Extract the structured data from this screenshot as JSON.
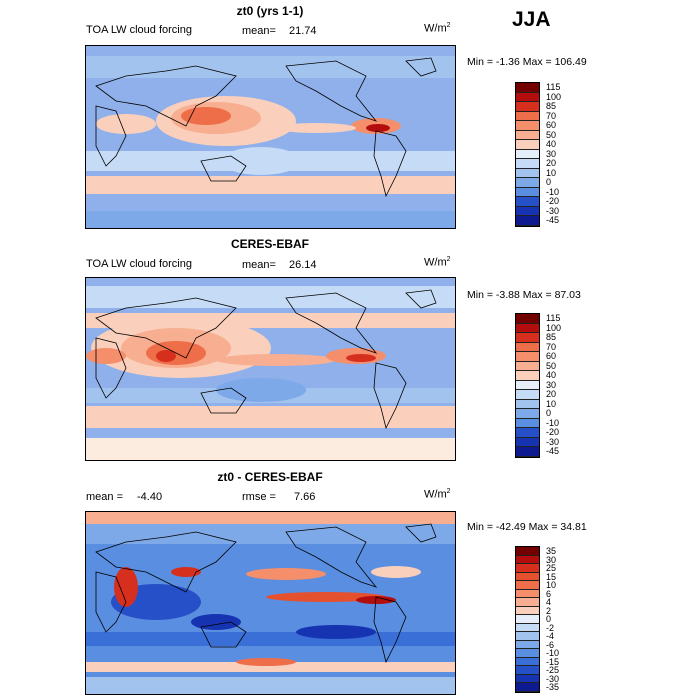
{
  "season": "JJA",
  "colors": {
    "scale": [
      "#730000",
      "#b30d0d",
      "#d62f1e",
      "#e5502f",
      "#ef6e4a",
      "#f58e6a",
      "#f8ae91",
      "#fad0bd",
      "#fcebdf",
      "#e6eefa",
      "#c6dbf5",
      "#a3c3ef",
      "#7ea9e8",
      "#5a8ee0",
      "#3a6fd8",
      "#2650c8",
      "#1634b2",
      "#0d1a90"
    ],
    "land": "#9fbfee",
    "ocean": "#8fb0ea"
  },
  "panels": [
    {
      "title": "zt0 (yrs 1-1)",
      "variable": "TOA LW cloud forcing",
      "stat_label": "mean=",
      "stat_value": "21.74",
      "units": "W/m",
      "units_exp": "2",
      "min_label": "Min =",
      "min_value": "-1.36",
      "max_label": "Max =",
      "max_value": "106.49",
      "levels": [
        "115",
        "100",
        "85",
        "70",
        "60",
        "50",
        "40",
        "30",
        "20",
        "10",
        "0",
        "-10",
        "-20",
        "-30",
        "-45"
      ]
    },
    {
      "title": "CERES-EBAF",
      "variable": "TOA LW cloud forcing",
      "stat_label": "mean=",
      "stat_value": "26.14",
      "units": "W/m",
      "units_exp": "2",
      "min_label": "Min =",
      "min_value": "-3.88",
      "max_label": "Max =",
      "max_value": "87.03",
      "levels": [
        "115",
        "100",
        "85",
        "70",
        "60",
        "50",
        "40",
        "30",
        "20",
        "10",
        "0",
        "-10",
        "-20",
        "-30",
        "-45"
      ]
    },
    {
      "title": "zt0 - CERES-EBAF",
      "mean_label": "mean =",
      "mean_value": "-4.40",
      "rmse_label": "rmse =",
      "rmse_value": "7.66",
      "units": "W/m",
      "units_exp": "2",
      "min_label": "Min =",
      "min_value": "-42.49",
      "max_label": "Max =",
      "max_value": "34.81",
      "levels": [
        "35",
        "30",
        "25",
        "15",
        "10",
        "6",
        "4",
        "2",
        "0",
        "-2",
        "-4",
        "-6",
        "-10",
        "-15",
        "-25",
        "-30",
        "-35"
      ]
    }
  ]
}
